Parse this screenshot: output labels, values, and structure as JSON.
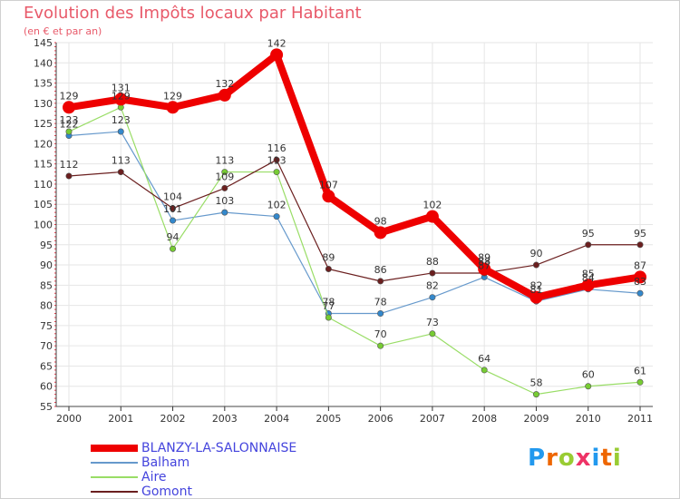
{
  "chart_data": {
    "type": "line",
    "title": "Evolution des Impôts locaux par Habitant",
    "subtitle": "(en € et par an)",
    "xlabel": "",
    "ylabel": "",
    "ylim": [
      55,
      145
    ],
    "ytick_labels": [
      "55",
      "60",
      "65",
      "70",
      "75",
      "80",
      "85",
      "90",
      "95",
      "100",
      "105",
      "110",
      "115",
      "120",
      "125",
      "130",
      "135",
      "140",
      "145"
    ],
    "categories": [
      "2000",
      "2001",
      "2002",
      "2003",
      "2004",
      "2005",
      "2006",
      "2007",
      "2008",
      "2009",
      "2010",
      "2011"
    ],
    "grid": true,
    "legend_position": "bottom-left",
    "series": [
      {
        "name": "BLANZY-LA-SALONNAISE",
        "color": "#ee0000",
        "marker_color": "#ee0000",
        "values": [
          129,
          131,
          129,
          132,
          142,
          107,
          98,
          102,
          89,
          82,
          85,
          87
        ],
        "labels": [
          "129",
          "131",
          "129",
          "132",
          "142",
          "107",
          "98",
          "102",
          "89",
          "82",
          "85",
          "87"
        ]
      },
      {
        "name": "Balham",
        "color": "#6699cc",
        "marker_color": "#3388cc",
        "values": [
          122,
          123,
          101,
          103,
          102,
          78,
          78,
          82,
          87,
          81,
          84,
          83
        ],
        "labels": [
          "122",
          "123",
          "101",
          "103",
          "102",
          "78",
          "78",
          "82",
          "87",
          "81",
          "84",
          "83"
        ]
      },
      {
        "name": "Aire",
        "color": "#99dd66",
        "marker_color": "#77cc33",
        "values": [
          123,
          129,
          94,
          113,
          113,
          77,
          70,
          73,
          64,
          58,
          60,
          61
        ],
        "labels": [
          "123",
          "129",
          "94",
          "113",
          "113",
          "77",
          "70",
          "73",
          "64",
          "58",
          "60",
          "61"
        ]
      },
      {
        "name": "Gomont",
        "color": "#6b1f1f",
        "marker_color": "#6b1f1f",
        "values": [
          112,
          113,
          104,
          109,
          116,
          89,
          86,
          88,
          88,
          90,
          95,
          95
        ],
        "labels": [
          "112",
          "113",
          "104",
          "109",
          "116",
          "89",
          "86",
          "88",
          "88",
          "90",
          "95",
          "95"
        ]
      }
    ]
  },
  "legend": {
    "items": [
      {
        "label": "BLANZY-LA-SALONNAISE",
        "color": "#4444dd"
      },
      {
        "label": "Balham",
        "color": "#4444dd"
      },
      {
        "label": "Aire",
        "color": "#4444dd"
      },
      {
        "label": "Gomont",
        "color": "#4444dd"
      }
    ]
  },
  "logo": {
    "letters": [
      "P",
      "r",
      "o",
      "x",
      "i",
      "t",
      "i"
    ],
    "colors": [
      "#2299ee",
      "#ee6600",
      "#99cc33",
      "#ee3366",
      "#2299ee",
      "#ee6600",
      "#99cc33"
    ]
  }
}
